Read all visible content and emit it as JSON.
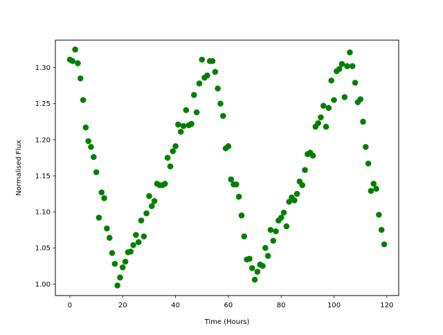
{
  "chart_data": {
    "type": "scatter",
    "title": "",
    "xlabel": "Time (Hours)",
    "ylabel": "Normalised Flux",
    "xlim": [
      -5.5,
      124.5
    ],
    "ylim": [
      0.984,
      1.338
    ],
    "x_ticks": [
      {
        "value": 0,
        "label": "0"
      },
      {
        "value": 20,
        "label": "20"
      },
      {
        "value": 40,
        "label": "40"
      },
      {
        "value": 60,
        "label": "60"
      },
      {
        "value": 80,
        "label": "80"
      },
      {
        "value": 100,
        "label": "100"
      },
      {
        "value": 120,
        "label": "120"
      }
    ],
    "y_ticks": [
      {
        "value": 1.0,
        "label": "1.00"
      },
      {
        "value": 1.05,
        "label": "1.05"
      },
      {
        "value": 1.1,
        "label": "1.10"
      },
      {
        "value": 1.15,
        "label": "1.15"
      },
      {
        "value": 1.2,
        "label": "1.20"
      },
      {
        "value": 1.25,
        "label": "1.25"
      },
      {
        "value": 1.3,
        "label": "1.30"
      }
    ],
    "grid": false,
    "legend": "none",
    "marker_color": "#008000",
    "series": [
      {
        "x": [
          0,
          1,
          2,
          3,
          4,
          5,
          6,
          7,
          8,
          9,
          10,
          11,
          12,
          13,
          14,
          15,
          16,
          17,
          18,
          19,
          20,
          21,
          22,
          23,
          24,
          25,
          26,
          27,
          28,
          29,
          30,
          31,
          32,
          33,
          34,
          35,
          36,
          37,
          38,
          39,
          40,
          41,
          42,
          43,
          44,
          45,
          46,
          47,
          48,
          49,
          50,
          51,
          52,
          53,
          54,
          55,
          56,
          57,
          58,
          59,
          60,
          61,
          62,
          63,
          64,
          65,
          66,
          67,
          68,
          69,
          70,
          71,
          72,
          73,
          74,
          75,
          76,
          77,
          78,
          79,
          80,
          81,
          82,
          83,
          84,
          85,
          86,
          87,
          88,
          89,
          90,
          91,
          92,
          93,
          94,
          95,
          96,
          97,
          98,
          99,
          100,
          101,
          102,
          103,
          104,
          105,
          106,
          107,
          108,
          109,
          110,
          111,
          112,
          113,
          114,
          115,
          116,
          117,
          118,
          119
        ],
        "y": [
          1.311,
          1.309,
          1.325,
          1.306,
          1.285,
          1.255,
          1.217,
          1.198,
          1.19,
          1.176,
          1.155,
          1.092,
          1.127,
          1.119,
          1.077,
          1.064,
          1.043,
          1.028,
          0.998,
          1.009,
          1.023,
          1.031,
          1.044,
          1.045,
          1.054,
          1.068,
          1.058,
          1.088,
          1.066,
          1.098,
          1.122,
          1.108,
          1.115,
          1.139,
          1.137,
          1.137,
          1.139,
          1.175,
          1.163,
          1.184,
          1.191,
          1.221,
          1.211,
          1.219,
          1.241,
          1.22,
          1.222,
          1.262,
          1.238,
          1.278,
          1.311,
          1.286,
          1.289,
          1.309,
          1.309,
          1.294,
          1.271,
          1.25,
          1.233,
          1.188,
          1.191,
          1.145,
          1.138,
          1.138,
          1.121,
          1.095,
          1.066,
          1.034,
          1.035,
          1.022,
          1.006,
          1.017,
          1.027,
          1.025,
          1.05,
          1.039,
          1.075,
          1.06,
          1.073,
          1.088,
          1.092,
          1.099,
          1.08,
          1.114,
          1.12,
          1.116,
          1.125,
          1.142,
          1.137,
          1.158,
          1.18,
          1.182,
          1.178,
          1.218,
          1.223,
          1.231,
          1.247,
          1.218,
          1.244,
          1.282,
          1.255,
          1.295,
          1.298,
          1.305,
          1.259,
          1.302,
          1.321,
          1.302,
          1.279,
          1.252,
          1.256,
          1.225,
          1.19,
          1.167,
          1.129,
          1.139,
          1.132,
          1.096,
          1.075,
          1.055
        ]
      }
    ]
  }
}
